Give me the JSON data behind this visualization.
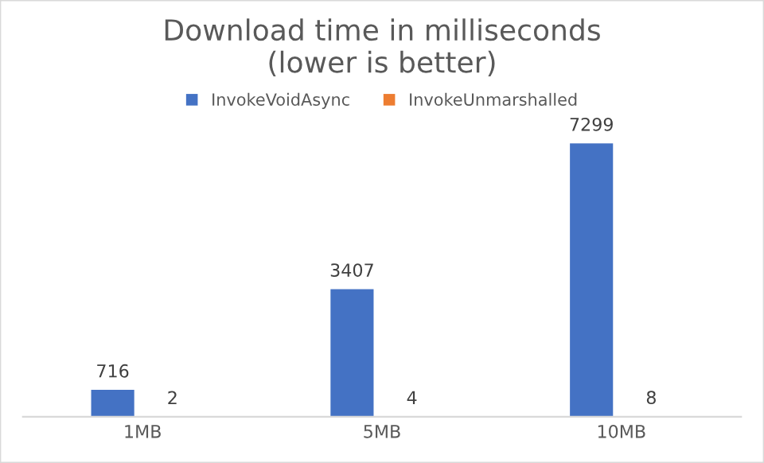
{
  "chart_data": {
    "type": "bar",
    "title": "Download time in milliseconds\n(lower is better)",
    "categories": [
      "1MB",
      "5MB",
      "10MB"
    ],
    "series": [
      {
        "name": "InvokeVoidAsync",
        "color": "#4472c4",
        "values": [
          716,
          3407,
          7299
        ]
      },
      {
        "name": "InvokeUnmarshalled",
        "color": "#ed7d31",
        "values": [
          2,
          4,
          8
        ]
      }
    ],
    "data_labels": true,
    "legend": "top",
    "grid": false
  }
}
